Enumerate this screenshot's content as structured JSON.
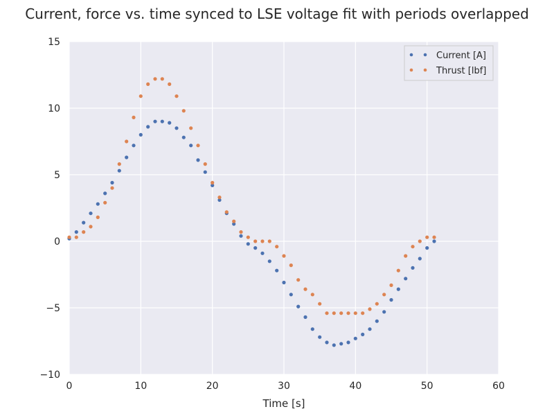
{
  "chart_data": {
    "type": "scatter",
    "title": "Current, force vs. time synced to LSE voltage fit with periods overlapped",
    "xlabel": "Time [s]",
    "ylabel": "",
    "xlim": [
      0,
      60
    ],
    "ylim": [
      -10,
      15
    ],
    "xticks": [
      0,
      10,
      20,
      30,
      40,
      50,
      60
    ],
    "yticks": [
      -10,
      -5,
      0,
      5,
      10,
      15
    ],
    "xtick_labels": [
      "0",
      "10",
      "20",
      "30",
      "40",
      "50",
      "60"
    ],
    "ytick_labels": [
      "−10",
      "−5",
      "0",
      "5",
      "10",
      "15"
    ],
    "grid": true,
    "legend_position": "top-right",
    "series": [
      {
        "name": "Current [A]",
        "color": "#4c72b0",
        "x": [
          0,
          1,
          2,
          3,
          4,
          5,
          6,
          7,
          8,
          9,
          10,
          11,
          12,
          13,
          14,
          15,
          16,
          17,
          18,
          19,
          20,
          21,
          22,
          23,
          24,
          25,
          26,
          27,
          28,
          29,
          30,
          31,
          32,
          33,
          34,
          35,
          36,
          37,
          38,
          39,
          40,
          41,
          42,
          43,
          44,
          45,
          46,
          47,
          48,
          49,
          50,
          51
        ],
        "y": [
          0.2,
          0.7,
          1.4,
          2.1,
          2.8,
          3.6,
          4.4,
          5.3,
          6.3,
          7.2,
          8.0,
          8.6,
          9.0,
          9.0,
          8.9,
          8.5,
          7.8,
          7.2,
          6.1,
          5.2,
          4.2,
          3.1,
          2.1,
          1.3,
          0.4,
          -0.2,
          -0.5,
          -0.9,
          -1.5,
          -2.2,
          -3.1,
          -4.0,
          -4.9,
          -5.7,
          -6.6,
          -7.2,
          -7.6,
          -7.8,
          -7.7,
          -7.6,
          -7.3,
          -7.0,
          -6.6,
          -6.0,
          -5.3,
          -4.4,
          -3.6,
          -2.8,
          -2.0,
          -1.3,
          -0.5,
          0.0
        ]
      },
      {
        "name": "Thrust [lbf]",
        "color": "#dd8452",
        "x": [
          0,
          1,
          2,
          3,
          4,
          5,
          6,
          7,
          8,
          9,
          10,
          11,
          12,
          13,
          14,
          15,
          16,
          17,
          18,
          19,
          20,
          21,
          22,
          23,
          24,
          25,
          26,
          27,
          28,
          29,
          30,
          31,
          32,
          33,
          34,
          35,
          36,
          37,
          38,
          39,
          40,
          41,
          42,
          43,
          44,
          45,
          46,
          47,
          48,
          49,
          50,
          51
        ],
        "y": [
          0.3,
          0.3,
          0.7,
          1.1,
          1.8,
          2.9,
          4.0,
          5.8,
          7.5,
          9.3,
          10.9,
          11.8,
          12.2,
          12.2,
          11.8,
          10.9,
          9.8,
          8.5,
          7.2,
          5.8,
          4.4,
          3.3,
          2.2,
          1.5,
          0.7,
          0.3,
          0.0,
          0.0,
          0.0,
          -0.4,
          -1.1,
          -1.8,
          -2.9,
          -3.6,
          -4.0,
          -4.7,
          -5.4,
          -5.4,
          -5.4,
          -5.4,
          -5.4,
          -5.4,
          -5.1,
          -4.7,
          -4.0,
          -3.3,
          -2.2,
          -1.1,
          -0.4,
          0.0,
          0.3,
          0.3
        ]
      }
    ]
  }
}
